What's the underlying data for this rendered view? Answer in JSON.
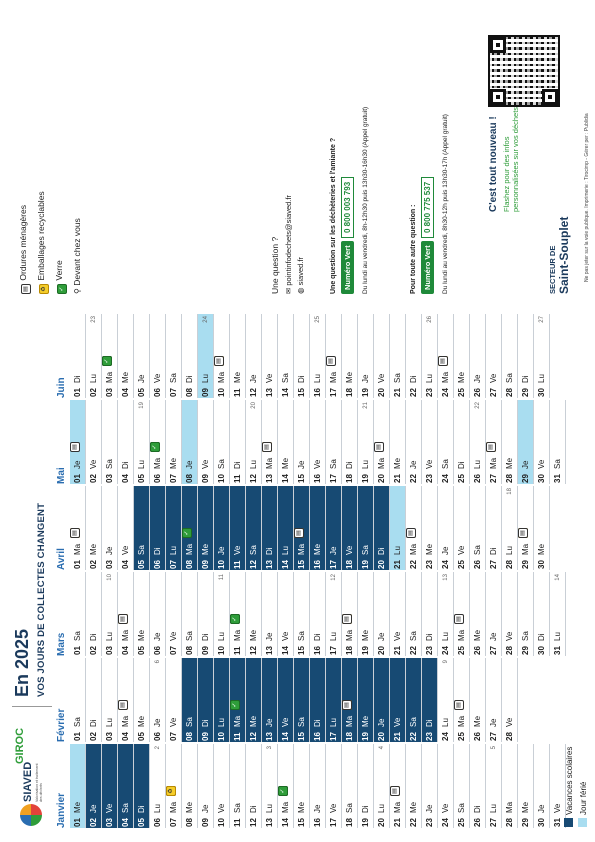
{
  "header": {
    "brand": "SIAVED",
    "brand_sub": "Valorisation et traitement des déchets",
    "partner": "GIROC",
    "title": "En 2025",
    "subtitle": "VOS JOURS DE COLLECTES CHANGENT"
  },
  "legend": {
    "waste": [
      {
        "label": "Ordures ménagères",
        "icon": "trash-icon"
      },
      {
        "label": "Emballages recyclables",
        "icon": "recycle-icon"
      },
      {
        "label": "Verre",
        "icon": "glass-icon"
      },
      {
        "label": "Devant chez vous",
        "icon": "location-icon"
      }
    ],
    "vacances": "Vacances scolaires",
    "ferie": "Jour férié",
    "colors": {
      "vacances": "#174a73",
      "ferie": "#a9ddf0",
      "yellow": "#f5cd2a",
      "green": "#2f9d3a"
    }
  },
  "question": {
    "title": "Une question ?",
    "email": "pointinfodechets@siaved.fr",
    "web": "siaved.fr"
  },
  "dechetteries": {
    "title": "Une question sur les déchèteries et l'amiante ?",
    "pill": "Numéro Vert",
    "number": "0 800 003 793",
    "hours": "Du lundi au vendredi, 8h-12h30 puis 13h30-16h30 (Appel gratuit)"
  },
  "autre": {
    "title": "Pour toute autre question :",
    "pill": "Numéro Vert",
    "number": "0 800 775 537",
    "hours": "Du lundi au vendredi, 8h30-12h puis 13h30-17h (Appel gratuit)"
  },
  "promo": {
    "title": "C'est tout nouveau !",
    "text": "Flashez pour des infos personnalisées sur vos déchets !"
  },
  "secteur": {
    "label": "SECTEUR DE",
    "name": "Saint-Souplet"
  },
  "footer": "Ne pas jeter sur la voie publique. Imprimerie : Tirocimp - Gérer per : Publidia",
  "months": [
    {
      "name": "Janvier",
      "days": [
        [
          "01",
          "Me",
          "",
          "f"
        ],
        [
          "02",
          "Je",
          "",
          "v"
        ],
        [
          "03",
          "Ve",
          "",
          "v"
        ],
        [
          "04",
          "Sa",
          "",
          "v"
        ],
        [
          "05",
          "Di",
          "",
          "v"
        ],
        [
          "06",
          "Lu",
          "",
          "",
          "2"
        ],
        [
          "07",
          "Ma",
          "ty",
          ""
        ],
        [
          "08",
          "Me",
          "",
          ""
        ],
        [
          "09",
          "Je",
          "",
          ""
        ],
        [
          "10",
          "Ve",
          "",
          ""
        ],
        [
          "11",
          "Sa",
          "",
          ""
        ],
        [
          "12",
          "Di",
          "",
          ""
        ],
        [
          "13",
          "Lu",
          "",
          "",
          "3"
        ],
        [
          "14",
          "Ma",
          "tg",
          ""
        ],
        [
          "15",
          "Me",
          "",
          ""
        ],
        [
          "16",
          "Je",
          "",
          ""
        ],
        [
          "17",
          "Ve",
          "",
          ""
        ],
        [
          "18",
          "Sa",
          "",
          ""
        ],
        [
          "19",
          "Di",
          "",
          ""
        ],
        [
          "20",
          "Lu",
          "",
          "",
          "4"
        ],
        [
          "21",
          "Ma",
          "yt",
          ""
        ],
        [
          "22",
          "Me",
          "",
          ""
        ],
        [
          "23",
          "Je",
          "",
          ""
        ],
        [
          "24",
          "Ve",
          "",
          ""
        ],
        [
          "25",
          "Sa",
          "",
          ""
        ],
        [
          "26",
          "Di",
          "",
          ""
        ],
        [
          "27",
          "Lu",
          "",
          "",
          "5"
        ],
        [
          "28",
          "Ma",
          "",
          ""
        ],
        [
          "29",
          "Me",
          "",
          ""
        ],
        [
          "30",
          "Je",
          "",
          ""
        ],
        [
          "31",
          "Ve",
          "",
          ""
        ]
      ]
    },
    {
      "name": "Février",
      "days": [
        [
          "01",
          "Sa",
          "",
          ""
        ],
        [
          "02",
          "Di",
          "",
          ""
        ],
        [
          "03",
          "Lu",
          "",
          ""
        ],
        [
          "04",
          "Ma",
          "yt",
          ""
        ],
        [
          "05",
          "Me",
          "",
          ""
        ],
        [
          "06",
          "Je",
          "",
          "",
          "6"
        ],
        [
          "07",
          "Ve",
          "",
          ""
        ],
        [
          "08",
          "Sa",
          "",
          "v"
        ],
        [
          "09",
          "Di",
          "",
          "v"
        ],
        [
          "10",
          "Lu",
          "",
          "v"
        ],
        [
          "11",
          "Ma",
          "tg",
          "v"
        ],
        [
          "12",
          "Me",
          "",
          "v"
        ],
        [
          "13",
          "Je",
          "",
          "v"
        ],
        [
          "14",
          "Ve",
          "",
          "v"
        ],
        [
          "15",
          "Sa",
          "",
          "v"
        ],
        [
          "16",
          "Di",
          "",
          "v"
        ],
        [
          "17",
          "Lu",
          "",
          "v"
        ],
        [
          "18",
          "Ma",
          "yt",
          "v"
        ],
        [
          "19",
          "Me",
          "",
          "v"
        ],
        [
          "20",
          "Je",
          "",
          "v"
        ],
        [
          "21",
          "Ve",
          "",
          "v"
        ],
        [
          "22",
          "Sa",
          "",
          "v"
        ],
        [
          "23",
          "Di",
          "",
          "v"
        ],
        [
          "24",
          "Lu",
          "",
          "",
          "9"
        ],
        [
          "25",
          "Ma",
          "t",
          ""
        ],
        [
          "26",
          "Me",
          "",
          ""
        ],
        [
          "27",
          "Je",
          "",
          ""
        ],
        [
          "28",
          "Ve",
          "",
          ""
        ]
      ]
    },
    {
      "name": "Mars",
      "days": [
        [
          "01",
          "Sa",
          "",
          ""
        ],
        [
          "02",
          "Di",
          "",
          ""
        ],
        [
          "03",
          "Lu",
          "",
          "",
          "10"
        ],
        [
          "04",
          "Ma",
          "yt",
          ""
        ],
        [
          "05",
          "Me",
          "",
          ""
        ],
        [
          "06",
          "Je",
          "",
          ""
        ],
        [
          "07",
          "Ve",
          "",
          ""
        ],
        [
          "08",
          "Sa",
          "",
          ""
        ],
        [
          "09",
          "Di",
          "",
          ""
        ],
        [
          "10",
          "Lu",
          "",
          "",
          "11"
        ],
        [
          "11",
          "Ma",
          "tg",
          ""
        ],
        [
          "12",
          "Me",
          "",
          ""
        ],
        [
          "13",
          "Je",
          "",
          ""
        ],
        [
          "14",
          "Ve",
          "",
          ""
        ],
        [
          "15",
          "Sa",
          "",
          ""
        ],
        [
          "16",
          "Di",
          "",
          ""
        ],
        [
          "17",
          "Lu",
          "",
          "",
          "12"
        ],
        [
          "18",
          "Ma",
          "yt",
          ""
        ],
        [
          "19",
          "Me",
          "",
          ""
        ],
        [
          "20",
          "Je",
          "",
          ""
        ],
        [
          "21",
          "Ve",
          "",
          ""
        ],
        [
          "22",
          "Sa",
          "",
          ""
        ],
        [
          "23",
          "Di",
          "",
          ""
        ],
        [
          "24",
          "Lu",
          "",
          "",
          "13"
        ],
        [
          "25",
          "Ma",
          "t",
          ""
        ],
        [
          "26",
          "Me",
          "",
          ""
        ],
        [
          "27",
          "Je",
          "",
          ""
        ],
        [
          "28",
          "Ve",
          "",
          ""
        ],
        [
          "29",
          "Sa",
          "",
          ""
        ],
        [
          "30",
          "Di",
          "",
          ""
        ],
        [
          "31",
          "Lu",
          "",
          "",
          "14"
        ]
      ]
    },
    {
      "name": "Avril",
      "days": [
        [
          "01",
          "Ma",
          "yt",
          ""
        ],
        [
          "02",
          "Me",
          "",
          ""
        ],
        [
          "03",
          "Je",
          "",
          ""
        ],
        [
          "04",
          "Ve",
          "",
          ""
        ],
        [
          "05",
          "Sa",
          "",
          "v"
        ],
        [
          "06",
          "Di",
          "",
          "v"
        ],
        [
          "07",
          "Lu",
          "",
          "v"
        ],
        [
          "08",
          "Ma",
          "tg",
          "v"
        ],
        [
          "09",
          "Me",
          "",
          "v"
        ],
        [
          "10",
          "Je",
          "",
          "v"
        ],
        [
          "11",
          "Ve",
          "",
          "v"
        ],
        [
          "12",
          "Sa",
          "",
          "v"
        ],
        [
          "13",
          "Di",
          "",
          "v"
        ],
        [
          "14",
          "Lu",
          "",
          "v"
        ],
        [
          "15",
          "Ma",
          "yt",
          "v"
        ],
        [
          "16",
          "Me",
          "",
          "v"
        ],
        [
          "17",
          "Je",
          "",
          "v"
        ],
        [
          "18",
          "Ve",
          "",
          "v"
        ],
        [
          "19",
          "Sa",
          "",
          "v"
        ],
        [
          "20",
          "Di",
          "",
          "v"
        ],
        [
          "21",
          "Lu",
          "",
          "f"
        ],
        [
          "22",
          "Ma",
          "t",
          ""
        ],
        [
          "23",
          "Me",
          "",
          ""
        ],
        [
          "24",
          "Je",
          "",
          ""
        ],
        [
          "25",
          "Ve",
          "",
          ""
        ],
        [
          "26",
          "Sa",
          "",
          ""
        ],
        [
          "27",
          "Di",
          "",
          ""
        ],
        [
          "28",
          "Lu",
          "",
          "",
          "18"
        ],
        [
          "29",
          "Ma",
          "yt",
          ""
        ],
        [
          "30",
          "Me",
          "",
          ""
        ]
      ]
    },
    {
      "name": "Mai",
      "days": [
        [
          "01",
          "Je",
          "t",
          "f"
        ],
        [
          "02",
          "Ve",
          "",
          ""
        ],
        [
          "03",
          "Sa",
          "",
          ""
        ],
        [
          "04",
          "Di",
          "",
          ""
        ],
        [
          "05",
          "Lu",
          "",
          "",
          "19"
        ],
        [
          "06",
          "Ma",
          "tg",
          ""
        ],
        [
          "07",
          "Me",
          "",
          ""
        ],
        [
          "08",
          "Je",
          "",
          "f"
        ],
        [
          "09",
          "Ve",
          "",
          ""
        ],
        [
          "10",
          "Sa",
          "",
          ""
        ],
        [
          "11",
          "Di",
          "",
          ""
        ],
        [
          "12",
          "Lu",
          "",
          "",
          "20"
        ],
        [
          "13",
          "Ma",
          "yt",
          ""
        ],
        [
          "14",
          "Me",
          "",
          ""
        ],
        [
          "15",
          "Je",
          "",
          ""
        ],
        [
          "16",
          "Ve",
          "",
          ""
        ],
        [
          "17",
          "Sa",
          "",
          ""
        ],
        [
          "18",
          "Di",
          "",
          ""
        ],
        [
          "19",
          "Lu",
          "",
          "",
          "21"
        ],
        [
          "20",
          "Ma",
          "t",
          ""
        ],
        [
          "21",
          "Me",
          "",
          ""
        ],
        [
          "22",
          "Je",
          "",
          ""
        ],
        [
          "23",
          "Ve",
          "",
          ""
        ],
        [
          "24",
          "Sa",
          "",
          ""
        ],
        [
          "25",
          "Di",
          "",
          ""
        ],
        [
          "26",
          "Lu",
          "",
          "",
          "22"
        ],
        [
          "27",
          "Ma",
          "yt",
          ""
        ],
        [
          "28",
          "Me",
          "",
          ""
        ],
        [
          "29",
          "Je",
          "",
          "f"
        ],
        [
          "30",
          "Ve",
          "",
          ""
        ],
        [
          "31",
          "Sa",
          "",
          ""
        ]
      ]
    },
    {
      "name": "Juin",
      "days": [
        [
          "01",
          "Di",
          "",
          ""
        ],
        [
          "02",
          "Lu",
          "",
          "",
          "23"
        ],
        [
          "03",
          "Ma",
          "tg",
          ""
        ],
        [
          "04",
          "Me",
          "",
          ""
        ],
        [
          "05",
          "Je",
          "",
          ""
        ],
        [
          "06",
          "Ve",
          "",
          ""
        ],
        [
          "07",
          "Sa",
          "",
          ""
        ],
        [
          "08",
          "Di",
          "",
          ""
        ],
        [
          "09",
          "Lu",
          "",
          "f",
          "24"
        ],
        [
          "10",
          "Ma",
          "yt",
          ""
        ],
        [
          "11",
          "Me",
          "",
          ""
        ],
        [
          "12",
          "Je",
          "",
          ""
        ],
        [
          "13",
          "Ve",
          "",
          ""
        ],
        [
          "14",
          "Sa",
          "",
          ""
        ],
        [
          "15",
          "Di",
          "",
          ""
        ],
        [
          "16",
          "Lu",
          "",
          "",
          "25"
        ],
        [
          "17",
          "Ma",
          "t",
          ""
        ],
        [
          "18",
          "Me",
          "",
          ""
        ],
        [
          "19",
          "Je",
          "",
          ""
        ],
        [
          "20",
          "Ve",
          "",
          ""
        ],
        [
          "21",
          "Sa",
          "",
          ""
        ],
        [
          "22",
          "Di",
          "",
          ""
        ],
        [
          "23",
          "Lu",
          "",
          "",
          "26"
        ],
        [
          "24",
          "Ma",
          "yt",
          ""
        ],
        [
          "25",
          "Me",
          "",
          ""
        ],
        [
          "26",
          "Je",
          "",
          ""
        ],
        [
          "27",
          "Ve",
          "",
          ""
        ],
        [
          "28",
          "Sa",
          "",
          ""
        ],
        [
          "29",
          "Di",
          "",
          ""
        ],
        [
          "30",
          "Lu",
          "",
          "",
          "27"
        ]
      ]
    }
  ]
}
